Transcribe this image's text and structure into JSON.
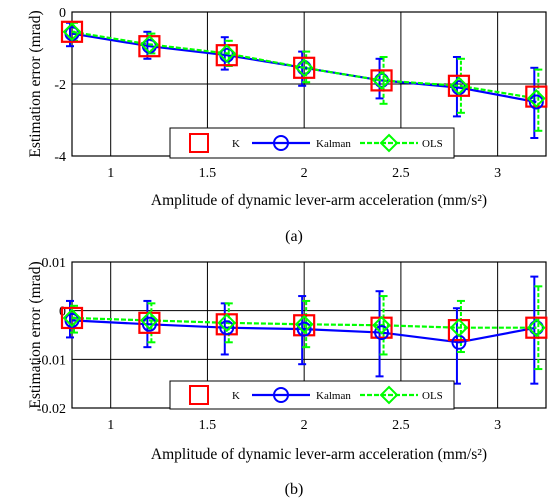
{
  "colors": {
    "K": "#ff0000",
    "Kalman": "#0000ff",
    "OLS": "#00ff00",
    "axis": "#000000",
    "grid": "#000000"
  },
  "chart_data": [
    {
      "type": "line",
      "panel": "a",
      "caption": "(a)",
      "xlabel": "Amplitude of  dynamic lever-arm acceleration (mm/s²)",
      "ylabel": "Estimation error (mrad)",
      "xlim": [
        0.8,
        3.25
      ],
      "ylim": [
        -4,
        0
      ],
      "xticks": [
        1,
        1.5,
        2,
        2.5,
        3
      ],
      "xtick_labels": [
        "1",
        "1.5",
        "2",
        "2.5",
        "3"
      ],
      "yticks": [
        -4,
        -2,
        0
      ],
      "ytick_labels": [
        "-4",
        "-2",
        "0"
      ],
      "grid": true,
      "legend_position": "bottom-right",
      "x": [
        0.8,
        1.2,
        1.6,
        2.0,
        2.4,
        2.8,
        3.2
      ],
      "series": [
        {
          "name": "K",
          "marker": "square",
          "values": [
            -0.55,
            -0.95,
            -1.2,
            -1.55,
            -1.9,
            -2.05,
            -2.35
          ]
        },
        {
          "name": "Kalman",
          "marker": "circle",
          "values": [
            -0.6,
            -0.95,
            -1.2,
            -1.55,
            -1.9,
            -2.1,
            -2.5
          ],
          "err_low": [
            -0.95,
            -1.3,
            -1.6,
            -2.05,
            -2.4,
            -2.9,
            -3.5
          ],
          "err_high": [
            -0.3,
            -0.55,
            -0.7,
            -1.1,
            -1.3,
            -1.25,
            -1.55
          ]
        },
        {
          "name": "OLS",
          "marker": "diamond",
          "values": [
            -0.55,
            -0.9,
            -1.15,
            -1.55,
            -1.9,
            -2.05,
            -2.4
          ],
          "err_low": [
            -0.8,
            -1.15,
            -1.5,
            -1.95,
            -2.55,
            -2.8,
            -3.3
          ],
          "err_high": [
            -0.3,
            -0.6,
            -0.8,
            -1.1,
            -1.25,
            -1.3,
            -1.6
          ]
        }
      ],
      "legend": [
        "K",
        "Kalman",
        "OLS"
      ]
    },
    {
      "type": "line",
      "panel": "b",
      "caption": "(b)",
      "xlabel": "Amplitude of  dynamic lever-arm acceleration (mm/s²)",
      "ylabel": "Estimation error (mrad)",
      "xlim": [
        0.8,
        3.25
      ],
      "ylim": [
        -0.02,
        0.01
      ],
      "xticks": [
        1,
        1.5,
        2,
        2.5,
        3
      ],
      "xtick_labels": [
        "1",
        "1.5",
        "2",
        "2.5",
        "3"
      ],
      "yticks": [
        -0.02,
        -0.01,
        0,
        0.01
      ],
      "ytick_labels": [
        "-0.02",
        "-0.01",
        "0",
        "0.01"
      ],
      "grid": true,
      "legend_position": "bottom-right",
      "x": [
        0.8,
        1.2,
        1.6,
        2.0,
        2.4,
        2.8,
        3.2
      ],
      "series": [
        {
          "name": "K",
          "marker": "square",
          "values": [
            -0.0015,
            -0.0025,
            -0.0028,
            -0.003,
            -0.0035,
            -0.004,
            -0.0035
          ]
        },
        {
          "name": "Kalman",
          "marker": "circle",
          "values": [
            -0.002,
            -0.0028,
            -0.0035,
            -0.0038,
            -0.0045,
            -0.0065,
            -0.0035
          ],
          "err_low": [
            -0.0055,
            -0.0075,
            -0.009,
            -0.011,
            -0.0135,
            -0.015,
            -0.015
          ],
          "err_high": [
            0.002,
            0.002,
            0.0015,
            0.003,
            0.004,
            0.0005,
            0.007
          ]
        },
        {
          "name": "OLS",
          "marker": "diamond",
          "values": [
            -0.0015,
            -0.002,
            -0.0025,
            -0.0028,
            -0.003,
            -0.0035,
            -0.0035
          ],
          "err_low": [
            -0.0045,
            -0.0065,
            -0.0065,
            -0.0075,
            -0.009,
            -0.0085,
            -0.012
          ],
          "err_high": [
            0.001,
            0.0015,
            0.0015,
            0.002,
            0.003,
            0.002,
            0.005
          ]
        }
      ],
      "legend": [
        "K",
        "Kalman",
        "OLS"
      ]
    }
  ]
}
